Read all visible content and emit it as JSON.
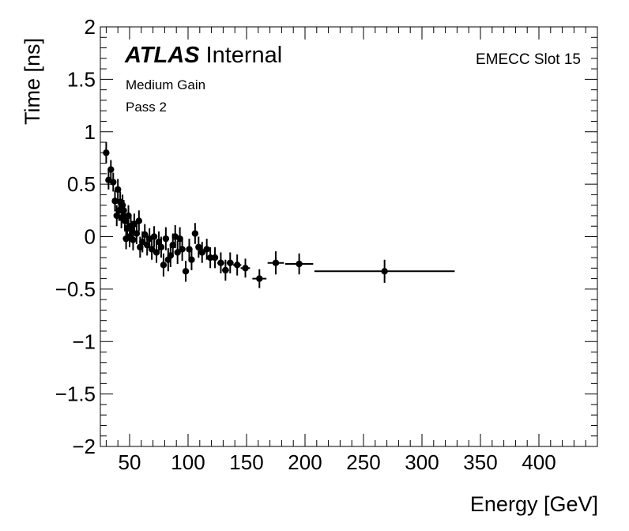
{
  "chart_data": {
    "type": "scatter",
    "style": "error-bars",
    "xlabel": "Energy [GeV]",
    "ylabel": "Time [ns]",
    "xlim": [
      25,
      450
    ],
    "ylim": [
      -2,
      2
    ],
    "x_ticks": [
      {
        "value": 50,
        "label": "50"
      },
      {
        "value": 100,
        "label": "100"
      },
      {
        "value": 150,
        "label": "150"
      },
      {
        "value": 200,
        "label": "200"
      },
      {
        "value": 250,
        "label": "250"
      },
      {
        "value": 300,
        "label": "300"
      },
      {
        "value": 350,
        "label": "350"
      },
      {
        "value": 400,
        "label": "400"
      }
    ],
    "y_ticks": [
      {
        "value": 2,
        "label": "2"
      },
      {
        "value": 1.5,
        "label": "1.5"
      },
      {
        "value": 1,
        "label": "1"
      },
      {
        "value": 0.5,
        "label": "0.5"
      },
      {
        "value": 0,
        "label": "0"
      },
      {
        "value": -0.5,
        "label": "−0.5"
      },
      {
        "value": -1,
        "label": "−1"
      },
      {
        "value": -1.5,
        "label": "−1.5"
      },
      {
        "value": -2,
        "label": "−2"
      }
    ],
    "x_minor_step": 10,
    "y_minor_step": 0.1,
    "annotations": {
      "experiment": "ATLAS",
      "status": "Internal",
      "gain": "Medium Gain",
      "pass": "Pass 2",
      "slot": "EMECC Slot 15"
    },
    "points": [
      {
        "x": 30,
        "xerr": 1,
        "y": 0.8,
        "yerr": 0.1
      },
      {
        "x": 32,
        "xerr": 1,
        "y": 0.54,
        "yerr": 0.09
      },
      {
        "x": 34,
        "xerr": 1,
        "y": 0.64,
        "yerr": 0.09
      },
      {
        "x": 36,
        "xerr": 1,
        "y": 0.52,
        "yerr": 0.09
      },
      {
        "x": 37.5,
        "xerr": 1,
        "y": 0.34,
        "yerr": 0.1
      },
      {
        "x": 39,
        "xerr": 1,
        "y": 0.2,
        "yerr": 0.1
      },
      {
        "x": 40,
        "xerr": 1,
        "y": 0.45,
        "yerr": 0.1
      },
      {
        "x": 41,
        "xerr": 1,
        "y": 0.25,
        "yerr": 0.1
      },
      {
        "x": 42,
        "xerr": 1,
        "y": 0.33,
        "yerr": 0.1
      },
      {
        "x": 43,
        "xerr": 1,
        "y": 0.18,
        "yerr": 0.1
      },
      {
        "x": 44,
        "xerr": 1,
        "y": 0.3,
        "yerr": 0.1
      },
      {
        "x": 45,
        "xerr": 1,
        "y": 0.25,
        "yerr": 0.1
      },
      {
        "x": 46,
        "xerr": 1,
        "y": 0.15,
        "yerr": 0.1
      },
      {
        "x": 47,
        "xerr": 1,
        "y": -0.02,
        "yerr": 0.1
      },
      {
        "x": 48,
        "xerr": 1,
        "y": 0.08,
        "yerr": 0.1
      },
      {
        "x": 49,
        "xerr": 1,
        "y": 0.2,
        "yerr": 0.1
      },
      {
        "x": 50,
        "xerr": 1,
        "y": 0.0,
        "yerr": 0.1
      },
      {
        "x": 51,
        "xerr": 1,
        "y": 0.1,
        "yerr": 0.1
      },
      {
        "x": 52,
        "xerr": 1,
        "y": 0.05,
        "yerr": 0.1
      },
      {
        "x": 53,
        "xerr": 1,
        "y": -0.03,
        "yerr": 0.1
      },
      {
        "x": 54,
        "xerr": 1,
        "y": 0.12,
        "yerr": 0.1
      },
      {
        "x": 56,
        "xerr": 1,
        "y": 0.03,
        "yerr": 0.1
      },
      {
        "x": 58,
        "xerr": 1,
        "y": 0.15,
        "yerr": 0.1
      },
      {
        "x": 59,
        "xerr": 1,
        "y": -0.1,
        "yerr": 0.1
      },
      {
        "x": 61,
        "xerr": 1,
        "y": -0.05,
        "yerr": 0.1
      },
      {
        "x": 63,
        "xerr": 1.5,
        "y": 0.02,
        "yerr": 0.1
      },
      {
        "x": 65,
        "xerr": 1.5,
        "y": -0.08,
        "yerr": 0.1
      },
      {
        "x": 67,
        "xerr": 1.5,
        "y": -0.02,
        "yerr": 0.1
      },
      {
        "x": 69,
        "xerr": 1.5,
        "y": -0.12,
        "yerr": 0.1
      },
      {
        "x": 71,
        "xerr": 1.5,
        "y": 0.0,
        "yerr": 0.1
      },
      {
        "x": 73,
        "xerr": 1.5,
        "y": -0.15,
        "yerr": 0.1
      },
      {
        "x": 75,
        "xerr": 1.5,
        "y": -0.05,
        "yerr": 0.1
      },
      {
        "x": 77,
        "xerr": 1.5,
        "y": -0.1,
        "yerr": 0.1
      },
      {
        "x": 79,
        "xerr": 1.5,
        "y": -0.27,
        "yerr": 0.11
      },
      {
        "x": 81,
        "xerr": 1.5,
        "y": -0.02,
        "yerr": 0.11
      },
      {
        "x": 83,
        "xerr": 1.5,
        "y": -0.22,
        "yerr": 0.11
      },
      {
        "x": 85,
        "xerr": 1.5,
        "y": -0.18,
        "yerr": 0.11
      },
      {
        "x": 87,
        "xerr": 1.5,
        "y": -0.08,
        "yerr": 0.11
      },
      {
        "x": 89,
        "xerr": 1.5,
        "y": 0.0,
        "yerr": 0.11
      },
      {
        "x": 91,
        "xerr": 1.5,
        "y": -0.15,
        "yerr": 0.11
      },
      {
        "x": 93,
        "xerr": 1.5,
        "y": -0.02,
        "yerr": 0.11
      },
      {
        "x": 95,
        "xerr": 1.5,
        "y": -0.12,
        "yerr": 0.11
      },
      {
        "x": 98,
        "xerr": 2,
        "y": -0.33,
        "yerr": 0.1
      },
      {
        "x": 101,
        "xerr": 2,
        "y": -0.12,
        "yerr": 0.1
      },
      {
        "x": 103,
        "xerr": 2,
        "y": -0.22,
        "yerr": 0.1
      },
      {
        "x": 106,
        "xerr": 2,
        "y": 0.03,
        "yerr": 0.1
      },
      {
        "x": 109,
        "xerr": 2,
        "y": -0.1,
        "yerr": 0.1
      },
      {
        "x": 112,
        "xerr": 2,
        "y": -0.15,
        "yerr": 0.1
      },
      {
        "x": 116,
        "xerr": 2.5,
        "y": -0.12,
        "yerr": 0.1
      },
      {
        "x": 119,
        "xerr": 2.5,
        "y": -0.2,
        "yerr": 0.1
      },
      {
        "x": 123,
        "xerr": 2.5,
        "y": -0.2,
        "yerr": 0.1
      },
      {
        "x": 128,
        "xerr": 3,
        "y": -0.25,
        "yerr": 0.1
      },
      {
        "x": 132,
        "xerr": 3,
        "y": -0.32,
        "yerr": 0.1
      },
      {
        "x": 136,
        "xerr": 3,
        "y": -0.25,
        "yerr": 0.1
      },
      {
        "x": 142,
        "xerr": 3.5,
        "y": -0.27,
        "yerr": 0.1
      },
      {
        "x": 149,
        "xerr": 4,
        "y": -0.3,
        "yerr": 0.09
      },
      {
        "x": 161,
        "xerr": 6,
        "y": -0.4,
        "yerr": 0.09
      },
      {
        "x": 175,
        "xerr": 7,
        "y": -0.25,
        "yerr": 0.11
      },
      {
        "x": 195,
        "xerr": 12,
        "y": -0.26,
        "yerr": 0.1
      },
      {
        "x": 268,
        "xerr": 60,
        "y": -0.33,
        "yerr": 0.11
      }
    ]
  }
}
